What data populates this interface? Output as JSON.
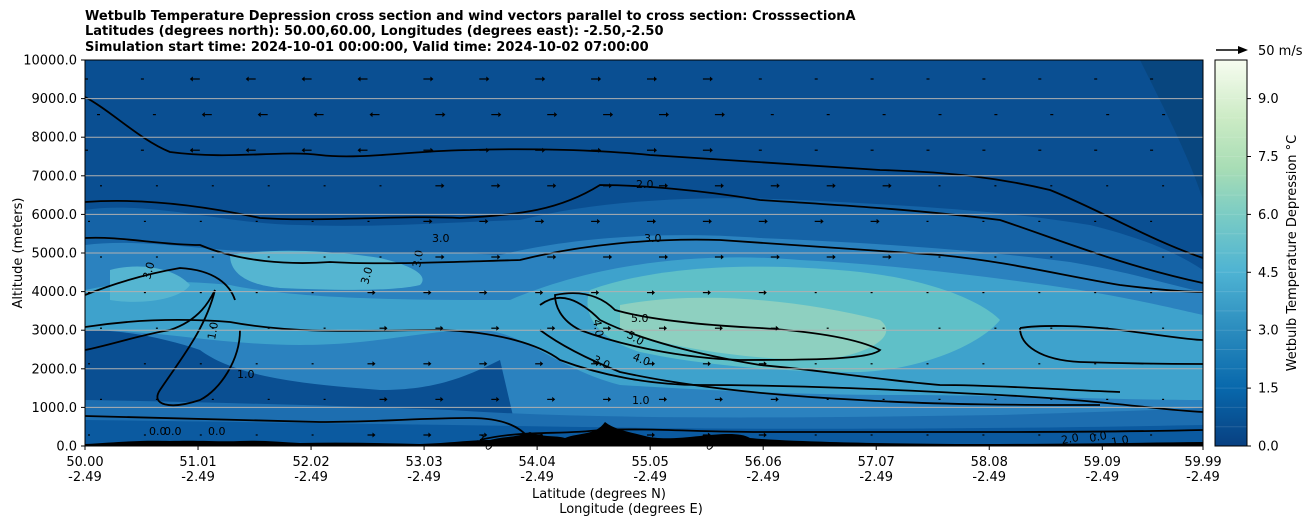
{
  "title": {
    "line1": "Wetbulb Temperature Depression cross section and wind vectors parallel to cross section: CrosssectionA",
    "line2": "Latitudes (degrees north): 50.00,60.00, Longitudes (degrees east): -2.50,-2.50",
    "line3": "Simulation start time: 2024-10-01 00:00:00, Valid time: 2024-10-02 07:00:00"
  },
  "quiver_key_label": "50 m/s",
  "chart_data": {
    "type": "heatmap",
    "xlabel": "Latitude (degrees N)",
    "xlabel2": "Longitude (degrees E)",
    "ylabel": "Altitude (meters)",
    "colorbar_label": "Wetbulb Temperature Depression °C",
    "x_ticks": [
      {
        "lat": "50.00",
        "lon": "-2.49"
      },
      {
        "lat": "51.01",
        "lon": "-2.49"
      },
      {
        "lat": "52.02",
        "lon": "-2.49"
      },
      {
        "lat": "53.03",
        "lon": "-2.49"
      },
      {
        "lat": "54.04",
        "lon": "-2.49"
      },
      {
        "lat": "55.05",
        "lon": "-2.49"
      },
      {
        "lat": "56.06",
        "lon": "-2.49"
      },
      {
        "lat": "57.07",
        "lon": "-2.49"
      },
      {
        "lat": "58.08",
        "lon": "-2.49"
      },
      {
        "lat": "59.09",
        "lon": "-2.49"
      },
      {
        "lat": "59.99",
        "lon": "-2.49"
      }
    ],
    "xlim": [
      50.0,
      59.99
    ],
    "y_ticks": [
      "0.0",
      "1000.0",
      "2000.0",
      "3000.0",
      "4000.0",
      "5000.0",
      "6000.0",
      "7000.0",
      "8000.0",
      "9000.0",
      "10000.0"
    ],
    "ylim": [
      0,
      10000
    ],
    "colorbar_ticks": [
      "0.0",
      "1.5",
      "3.0",
      "4.5",
      "6.0",
      "7.5",
      "9.0"
    ],
    "colorbar_range": [
      0,
      10
    ],
    "grid": "horizontal",
    "contour_labels": [
      "2.0",
      "3.0",
      "3.0",
      "3.0",
      "3.0",
      "3.0",
      "4.0",
      "5.0",
      "5.0",
      "4.0",
      "3.0",
      "1.0",
      "1.0",
      "1.0",
      "1.0",
      "0.0",
      "0.0",
      "0.0",
      "0.0",
      "2.0",
      "0.0",
      "1.0"
    ],
    "colors": {
      "low": "#084081",
      "mid": "#4eb3d3",
      "high": "#f7fcf0",
      "terrain": "#000000",
      "grid": "#b0b0b0"
    }
  }
}
